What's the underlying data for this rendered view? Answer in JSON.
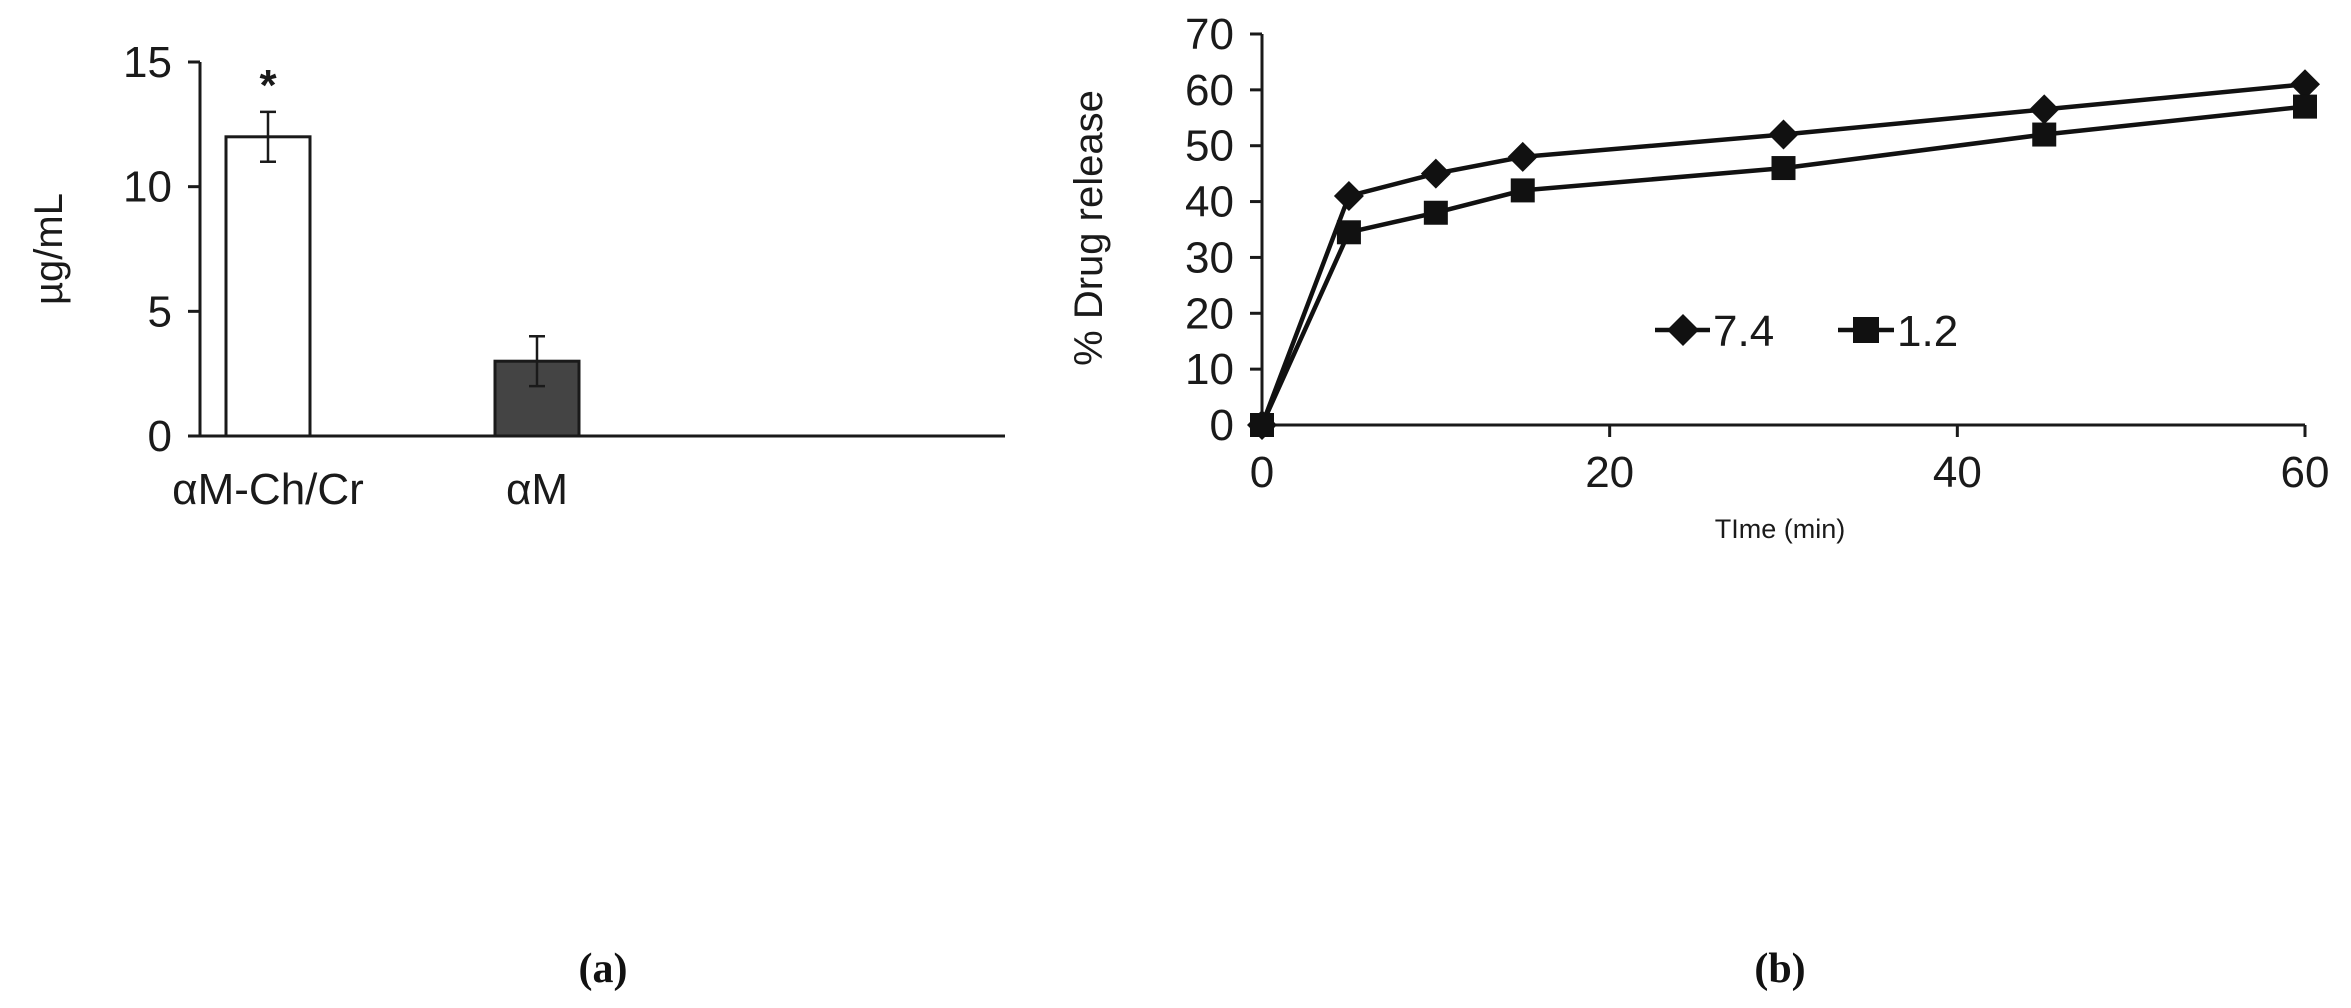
{
  "chart_data": [
    {
      "type": "bar",
      "panel_label": "(a)",
      "categories": [
        "αM-Ch/Cr",
        "αM"
      ],
      "values": [
        12.0,
        3.0
      ],
      "errors": [
        1.0,
        1.0
      ],
      "bar_colors": [
        "#ffffff",
        "#444444"
      ],
      "significance": [
        "*",
        ""
      ],
      "ylabel": "µg/mL",
      "xlabel": "",
      "ylim": [
        0,
        15
      ],
      "yticks": [
        "0",
        "5",
        "10",
        "15"
      ],
      "grid": false
    },
    {
      "type": "line",
      "panel_label": "(b)",
      "x": [
        0,
        5,
        10,
        15,
        30,
        45,
        60
      ],
      "series": [
        {
          "name": "7.4",
          "marker": "diamond",
          "values": [
            0,
            41,
            45,
            48,
            52,
            56.5,
            61
          ]
        },
        {
          "name": "1.2",
          "marker": "square",
          "values": [
            0,
            34.5,
            38,
            42,
            46,
            52,
            57
          ]
        }
      ],
      "xlabel": "TIme (min)",
      "ylabel": "% Drug release",
      "xlim": [
        0,
        60
      ],
      "ylim": [
        0,
        70
      ],
      "xticks": [
        "0",
        "20",
        "40",
        "60"
      ],
      "yticks": [
        "0",
        "10",
        "20",
        "30",
        "40",
        "50",
        "60",
        "70"
      ],
      "legend_position": "center",
      "grid": false
    }
  ]
}
